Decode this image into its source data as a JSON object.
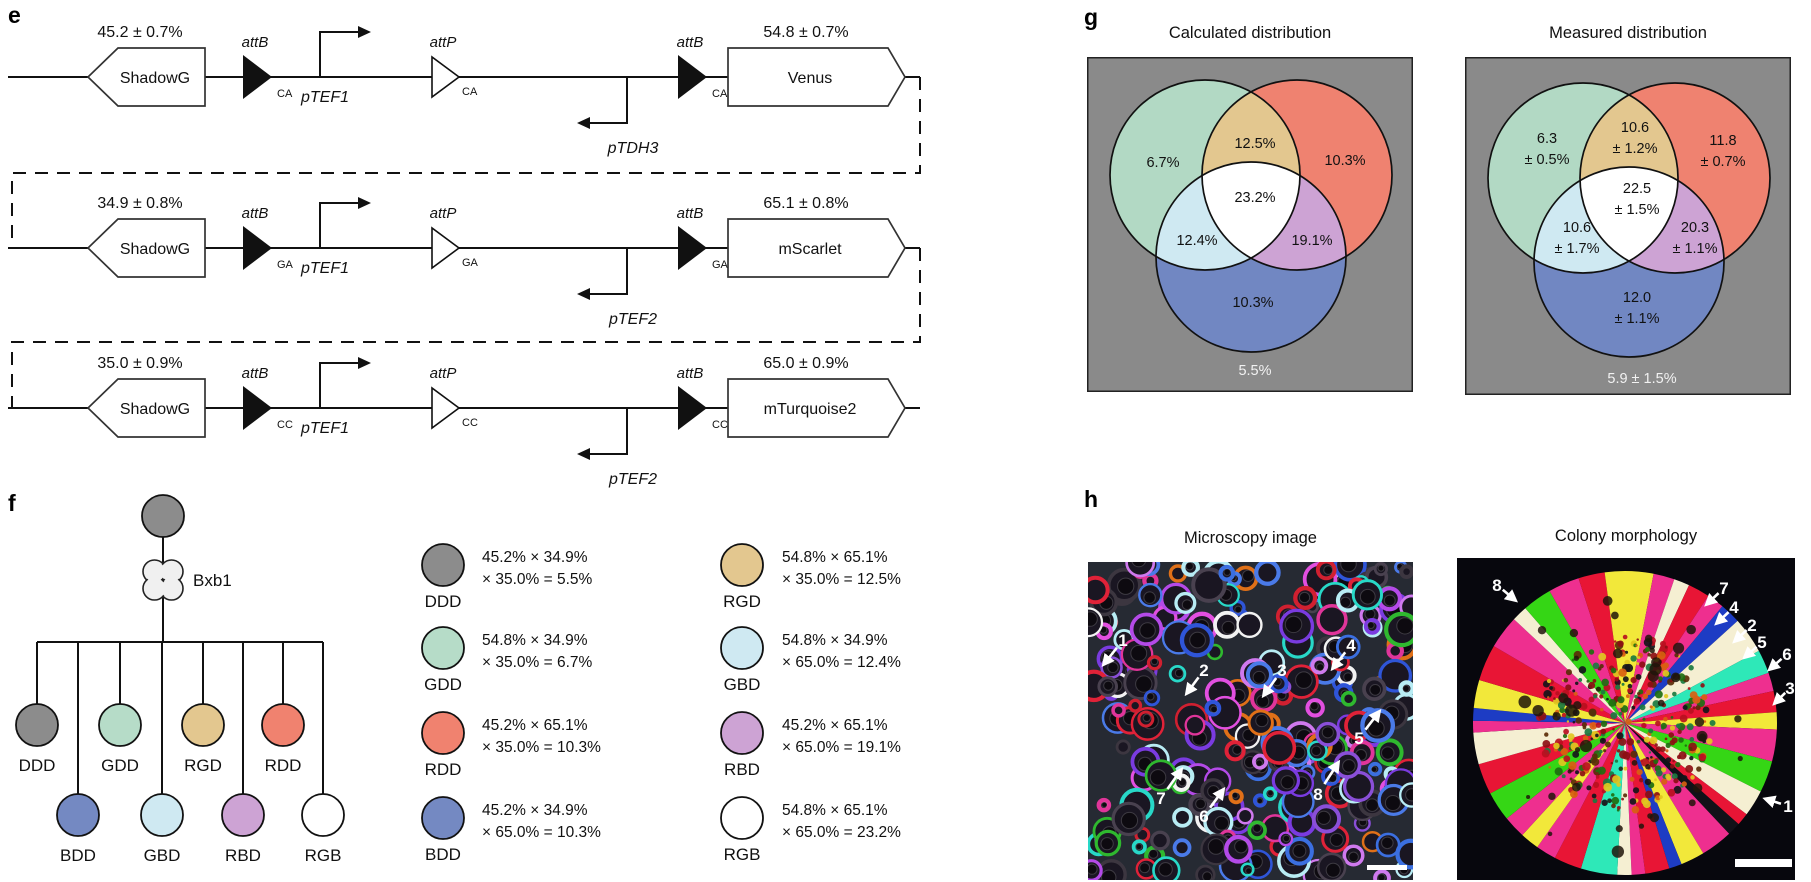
{
  "colors": {
    "gray": "#8c8c8c",
    "mint": "#b6dcc8",
    "tan": "#e3c78f",
    "salmon": "#f0826f",
    "blue": "#7489c2",
    "light_blue": "#cfe9f2",
    "orchid": "#cda3d4",
    "white": "#ffffff",
    "venn_bg": "#8a8a8a",
    "venn_green": "#b2d9c4",
    "venn_red": "#ef8270",
    "venn_blue": "#7187c2"
  },
  "panel_e": {
    "label": "e",
    "site_labels": {
      "attB": "attB",
      "attP": "attP"
    },
    "constructs": [
      {
        "left_pct": "45.2 ± 0.7%",
        "left_gene": "ShadowG",
        "right_pct": "54.8 ± 0.7%",
        "right_gene": "Venus",
        "dinucleotide": "CA",
        "fwd_promoter": "pTEF1",
        "rev_promoter": "pTDH3"
      },
      {
        "left_pct": "34.9 ± 0.8%",
        "left_gene": "ShadowG",
        "right_pct": "65.1 ± 0.8%",
        "right_gene": "mScarlet",
        "dinucleotide": "GA",
        "fwd_promoter": "pTEF1",
        "rev_promoter": "pTEF2"
      },
      {
        "left_pct": "35.0 ± 0.9%",
        "left_gene": "ShadowG",
        "right_pct": "65.0 ± 0.9%",
        "right_gene": "mTurquoise2",
        "dinucleotide": "CC",
        "fwd_promoter": "pTEF1",
        "rev_promoter": "pTEF2"
      }
    ]
  },
  "panel_f": {
    "label": "f",
    "enzyme": "Bxb1",
    "strains_top": [
      {
        "label": "DDD",
        "color_key": "gray"
      },
      {
        "label": "GDD",
        "color_key": "mint"
      },
      {
        "label": "RGD",
        "color_key": "tan"
      },
      {
        "label": "RDD",
        "color_key": "salmon"
      }
    ],
    "strains_bottom": [
      {
        "label": "BDD",
        "color_key": "blue"
      },
      {
        "label": "GBD",
        "color_key": "light_blue"
      },
      {
        "label": "RBD",
        "color_key": "orchid"
      },
      {
        "label": "RGB",
        "color_key": "white"
      }
    ],
    "legend_col1": [
      {
        "label": "DDD",
        "color_key": "gray",
        "line1": "45.2% × 34.9%",
        "line2": "× 35.0% = 5.5%"
      },
      {
        "label": "GDD",
        "color_key": "mint",
        "line1": "54.8% × 34.9%",
        "line2": "× 35.0% = 6.7%"
      },
      {
        "label": "RDD",
        "color_key": "salmon",
        "line1": "45.2% × 65.1%",
        "line2": "× 35.0% = 10.3%"
      },
      {
        "label": "BDD",
        "color_key": "blue",
        "line1": "45.2% × 34.9%",
        "line2": "× 65.0% = 10.3%"
      }
    ],
    "legend_col2": [
      {
        "label": "RGD",
        "color_key": "tan",
        "line1": "54.8% × 65.1%",
        "line2": "× 35.0% = 12.5%"
      },
      {
        "label": "GBD",
        "color_key": "light_blue",
        "line1": "54.8% × 34.9%",
        "line2": "× 65.0% = 12.4%"
      },
      {
        "label": "RBD",
        "color_key": "orchid",
        "line1": "45.2% × 65.1%",
        "line2": "× 65.0% = 19.1%"
      },
      {
        "label": "RGB",
        "color_key": "white",
        "line1": "54.8% × 65.1%",
        "line2": "× 65.0% = 23.2%"
      }
    ]
  },
  "panel_g": {
    "label": "g",
    "calculated": {
      "title": "Calculated distribution",
      "regions": {
        "green": [
          "6.7%"
        ],
        "green_red": [
          "12.5%"
        ],
        "red": [
          "10.3%"
        ],
        "center": [
          "23.2%"
        ],
        "green_blue": [
          "12.4%"
        ],
        "red_blue": [
          "19.1%"
        ],
        "blue": [
          "10.3%"
        ],
        "outside": [
          "5.5%"
        ]
      }
    },
    "measured": {
      "title": "Measured distribution",
      "regions": {
        "green": [
          "6.3",
          "± 0.5%"
        ],
        "green_red": [
          "10.6",
          "± 1.2%"
        ],
        "red": [
          "11.8",
          "± 0.7%"
        ],
        "center": [
          "22.5",
          "± 1.5%"
        ],
        "green_blue": [
          "10.6",
          "± 1.7%"
        ],
        "red_blue": [
          "20.3",
          "± 1.1%"
        ],
        "blue": [
          "12.0",
          "± 1.1%"
        ],
        "outside": [
          "5.9 ± 1.5%"
        ]
      }
    }
  },
  "panel_h": {
    "label": "h",
    "microscopy": {
      "title": "Microscopy image",
      "cell_colors": [
        "#4a7ae8",
        "#2f55d8",
        "#3b6fe0",
        "#7a3be0",
        "#b44ae8",
        "#e24fe0",
        "#e0359a",
        "#cf79ee",
        "#e02238",
        "#d02030",
        "#e07018",
        "#2fb82f",
        "#28d8c8",
        "#b8ecf4",
        "#f2f2f2",
        "#3c3640",
        "#49414f",
        "#8a4fd8"
      ],
      "arrows": [
        {
          "n": "1",
          "label": [
            35,
            78
          ],
          "tip": [
            16,
            102
          ]
        },
        {
          "n": "2",
          "label": [
            116,
            108
          ],
          "tip": [
            99,
            131
          ]
        },
        {
          "n": "3",
          "label": [
            194,
            108
          ],
          "tip": [
            176,
            133
          ]
        },
        {
          "n": "4",
          "label": [
            263,
            83
          ],
          "tip": [
            245,
            106
          ]
        },
        {
          "n": "5",
          "label": [
            271,
            176
          ],
          "tip": [
            291,
            150
          ]
        },
        {
          "n": "6",
          "label": [
            116,
            254
          ],
          "tip": [
            135,
            228
          ]
        },
        {
          "n": "7",
          "label": [
            73,
            236
          ],
          "tip": [
            93,
            208
          ]
        },
        {
          "n": "8",
          "label": [
            230,
            232
          ],
          "tip": [
            250,
            201
          ]
        }
      ],
      "scale_bar": [
        279,
        303,
        40,
        5
      ]
    },
    "colony": {
      "title": "Colony morphology",
      "wedge_colors": [
        "#f2e83a",
        "#ee2f8f",
        "#f5efd2",
        "#e81535",
        "#ee2f8f",
        "#1d3cc4",
        "#f5efd2",
        "#2ee8b8",
        "#ee2f8f",
        "#e81535",
        "#f2e83a",
        "#ee2f8f",
        "#35d615",
        "#f5efd2",
        "#e81535",
        "#111118",
        "#ee2f8f",
        "#f2e83a",
        "#1d3cc4",
        "#e81535",
        "#ee2f8f",
        "#f5efd2",
        "#2ee8b8",
        "#e81535",
        "#ee2f8f",
        "#f2e83a",
        "#ee2f8f",
        "#35d615",
        "#e81535",
        "#f5efd2",
        "#ee2f8f",
        "#1d3cc4",
        "#f2e83a",
        "#e81535",
        "#ee2f8f",
        "#f5efd2",
        "#35d615",
        "#ee2f8f",
        "#e81535",
        "#f2e83a"
      ],
      "speckle_colors": [
        "#b81020",
        "#e0c820",
        "#1e6e10",
        "#5a2c08",
        "#15151a",
        "#d86010",
        "#1a7a40",
        "#8c0f14"
      ],
      "arrows": [
        {
          "n": "8",
          "label": [
            40,
            27
          ],
          "tip": [
            58,
            42
          ]
        },
        {
          "n": "7",
          "label": [
            267,
            30
          ],
          "tip": [
            250,
            46
          ]
        },
        {
          "n": "4",
          "label": [
            277,
            49
          ],
          "tip": [
            260,
            65
          ]
        },
        {
          "n": "2",
          "label": [
            295,
            67
          ],
          "tip": [
            278,
            83
          ]
        },
        {
          "n": "5",
          "label": [
            305,
            84
          ],
          "tip": [
            288,
            99
          ]
        },
        {
          "n": "6",
          "label": [
            330,
            96
          ],
          "tip": [
            313,
            111
          ]
        },
        {
          "n": "3",
          "label": [
            333,
            130
          ],
          "tip": [
            318,
            145
          ]
        },
        {
          "n": "1",
          "label": [
            331,
            248
          ],
          "tip": [
            309,
            241
          ]
        }
      ],
      "scale_bar": [
        278,
        301,
        57,
        8
      ]
    }
  },
  "chart_data": [
    {
      "type": "venn3",
      "title": "Calculated distribution",
      "units": "%",
      "regions": {
        "green_only": 6.7,
        "red_only": 10.3,
        "blue_only": 10.3,
        "green_red": 12.5,
        "green_blue": 12.4,
        "red_blue": 19.1,
        "green_red_blue": 23.2,
        "outside": 5.5
      }
    },
    {
      "type": "venn3",
      "title": "Measured distribution",
      "units": "%",
      "regions": {
        "green_only": {
          "value": 6.3,
          "error": 0.5
        },
        "red_only": {
          "value": 11.8,
          "error": 0.7
        },
        "blue_only": {
          "value": 12.0,
          "error": 1.1
        },
        "green_red": {
          "value": 10.6,
          "error": 1.2
        },
        "green_blue": {
          "value": 10.6,
          "error": 1.7
        },
        "red_blue": {
          "value": 20.3,
          "error": 1.1
        },
        "green_red_blue": {
          "value": 22.5,
          "error": 1.5
        },
        "outside": {
          "value": 5.9,
          "error": 1.5
        }
      }
    }
  ]
}
